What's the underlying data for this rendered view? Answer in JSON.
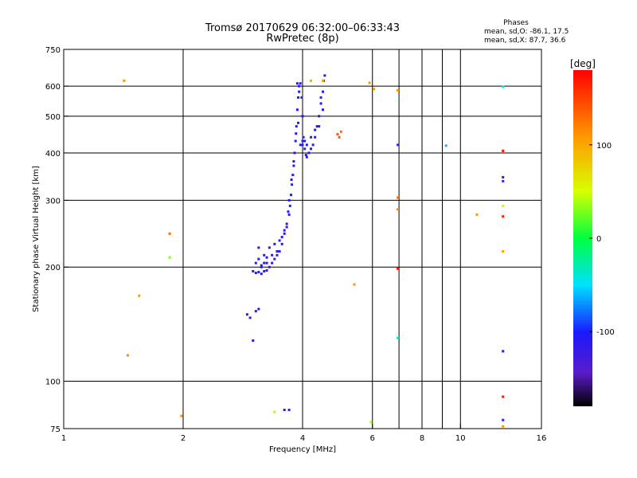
{
  "chart_data": {
    "type": "scatter",
    "title": "Tromsø 20170629 06:32:00–06:33:43",
    "subtitle": "RwPretec (8p)",
    "xlabel": "Frequency [MHz]",
    "ylabel": "Stationary phase Virtual Height [km]",
    "x_scale": "log",
    "y_scale": "log",
    "xlim": [
      1,
      16
    ],
    "ylim": [
      75,
      750
    ],
    "x_ticks": [
      1,
      2,
      4,
      6,
      8,
      10,
      16
    ],
    "x_tick_labels": [
      "1",
      "2",
      "4",
      "6",
      "8",
      "10",
      "16"
    ],
    "x_grid": [
      2,
      4,
      6,
      7,
      8,
      9,
      10
    ],
    "y_ticks": [
      75,
      100,
      200,
      300,
      400,
      500,
      600,
      750
    ],
    "y_tick_labels": [
      "75",
      "100",
      "200",
      "300",
      "400",
      "500",
      "600",
      "750"
    ],
    "y_grid": [
      100,
      200,
      300,
      400,
      500,
      600
    ],
    "grid": true,
    "stats": {
      "heading": "Phases",
      "line_o": "mean, sd,O: -86.1, 17.5",
      "line_x": "mean, sd,X:  87.7, 36.6"
    },
    "colorbar": {
      "label": "[deg]",
      "range": [
        -180,
        180
      ],
      "ticks": [
        100,
        0,
        -100
      ],
      "tick_labels": [
        "100",
        "0",
        "-100"
      ],
      "placement": "right"
    },
    "trace": {
      "phase": -110,
      "points": [
        [
          3.0,
          195
        ],
        [
          3.05,
          193
        ],
        [
          3.1,
          194
        ],
        [
          3.15,
          192
        ],
        [
          3.2,
          195
        ],
        [
          3.25,
          196
        ],
        [
          3.05,
          205
        ],
        [
          3.1,
          210
        ],
        [
          3.15,
          200
        ],
        [
          3.2,
          205
        ],
        [
          3.25,
          212
        ],
        [
          3.3,
          200
        ],
        [
          3.35,
          205
        ],
        [
          3.4,
          210
        ],
        [
          3.45,
          215
        ],
        [
          3.5,
          220
        ],
        [
          3.3,
          225
        ],
        [
          3.4,
          230
        ],
        [
          3.5,
          235
        ],
        [
          3.55,
          240
        ],
        [
          3.6,
          250
        ],
        [
          3.65,
          260
        ],
        [
          3.7,
          275
        ],
        [
          3.72,
          290
        ],
        [
          3.74,
          310
        ],
        [
          3.76,
          330
        ],
        [
          3.78,
          350
        ],
        [
          3.8,
          370
        ],
        [
          3.82,
          400
        ],
        [
          3.84,
          430
        ],
        [
          3.86,
          470
        ],
        [
          3.88,
          520
        ],
        [
          3.9,
          560
        ],
        [
          3.92,
          600
        ],
        [
          3.95,
          610
        ],
        [
          3.98,
          560
        ],
        [
          4.0,
          500
        ],
        [
          4.02,
          440
        ],
        [
          4.05,
          410
        ],
        [
          4.08,
          395
        ],
        [
          4.1,
          390
        ],
        [
          4.15,
          400
        ],
        [
          4.2,
          410
        ],
        [
          4.25,
          420
        ],
        [
          4.3,
          440
        ],
        [
          4.35,
          470
        ],
        [
          4.4,
          500
        ],
        [
          4.45,
          540
        ],
        [
          4.5,
          580
        ],
        [
          4.52,
          620
        ],
        [
          4.55,
          640
        ],
        [
          3.6,
          245
        ],
        [
          3.65,
          255
        ],
        [
          3.55,
          230
        ],
        [
          3.45,
          220
        ],
        [
          3.35,
          215
        ],
        [
          3.25,
          205
        ],
        [
          3.15,
          202
        ],
        [
          3.1,
          225
        ],
        [
          3.2,
          215
        ],
        [
          3.85,
          450
        ],
        [
          3.9,
          480
        ],
        [
          3.95,
          420
        ],
        [
          4.0,
          430
        ],
        [
          4.1,
          420
        ],
        [
          4.2,
          440
        ],
        [
          4.3,
          460
        ],
        [
          4.4,
          470
        ],
        [
          4.5,
          520
        ],
        [
          4.45,
          560
        ],
        [
          3.92,
          580
        ],
        [
          3.88,
          610
        ],
        [
          2.9,
          150
        ],
        [
          2.95,
          147
        ],
        [
          3.05,
          153
        ],
        [
          3.1,
          155
        ],
        [
          3.6,
          84
        ],
        [
          3.7,
          84
        ],
        [
          4.0,
          420
        ],
        [
          4.05,
          430
        ],
        [
          3.8,
          380
        ],
        [
          3.75,
          340
        ],
        [
          3.7,
          300
        ],
        [
          3.68,
          280
        ]
      ]
    },
    "points": [
      {
        "x": 1.42,
        "y": 620,
        "phase": 110
      },
      {
        "x": 1.45,
        "y": 117,
        "phase": 115
      },
      {
        "x": 1.55,
        "y": 168,
        "phase": 110
      },
      {
        "x": 1.85,
        "y": 245,
        "phase": 130
      },
      {
        "x": 1.85,
        "y": 212,
        "phase": 30
      },
      {
        "x": 1.98,
        "y": 81,
        "phase": 110
      },
      {
        "x": 3.0,
        "y": 128,
        "phase": -110
      },
      {
        "x": 3.4,
        "y": 83,
        "phase": 40
      },
      {
        "x": 4.2,
        "y": 620,
        "phase": 100
      },
      {
        "x": 4.5,
        "y": 620,
        "phase": 100
      },
      {
        "x": 4.9,
        "y": 448,
        "phase": 140
      },
      {
        "x": 4.95,
        "y": 440,
        "phase": 140
      },
      {
        "x": 5.0,
        "y": 455,
        "phase": 130
      },
      {
        "x": 5.4,
        "y": 180,
        "phase": 110
      },
      {
        "x": 5.9,
        "y": 612,
        "phase": 110
      },
      {
        "x": 5.95,
        "y": 78,
        "phase": 40
      },
      {
        "x": 6.05,
        "y": 590,
        "phase": 110
      },
      {
        "x": 6.95,
        "y": 585,
        "phase": 110
      },
      {
        "x": 6.95,
        "y": 420,
        "phase": -140
      },
      {
        "x": 6.95,
        "y": 305,
        "phase": 130
      },
      {
        "x": 6.95,
        "y": 284,
        "phase": 115
      },
      {
        "x": 6.95,
        "y": 198,
        "phase": 170
      },
      {
        "x": 6.95,
        "y": 130,
        "phase": -50
      },
      {
        "x": 9.2,
        "y": 418,
        "phase": -60
      },
      {
        "x": 11.0,
        "y": 275,
        "phase": 110
      },
      {
        "x": 12.8,
        "y": 598,
        "phase": -40
      },
      {
        "x": 12.8,
        "y": 405,
        "phase": 175
      },
      {
        "x": 12.8,
        "y": 345,
        "phase": -150
      },
      {
        "x": 12.8,
        "y": 337,
        "phase": -130
      },
      {
        "x": 12.8,
        "y": 290,
        "phase": 60
      },
      {
        "x": 12.8,
        "y": 272,
        "phase": 170
      },
      {
        "x": 12.8,
        "y": 220,
        "phase": 110
      },
      {
        "x": 12.8,
        "y": 120,
        "phase": -110
      },
      {
        "x": 12.8,
        "y": 91,
        "phase": 170
      },
      {
        "x": 12.8,
        "y": 79,
        "phase": -120
      },
      {
        "x": 12.8,
        "y": 76,
        "phase": 110
      }
    ]
  }
}
